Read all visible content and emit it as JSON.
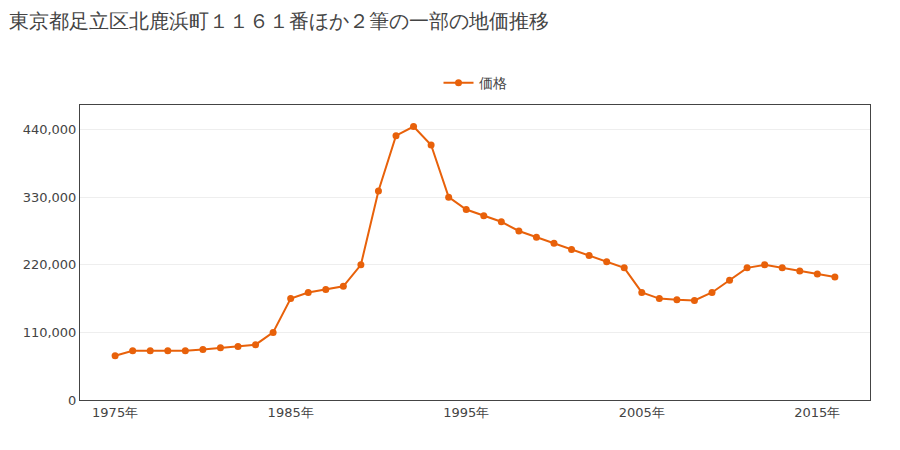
{
  "chart_data": {
    "type": "line",
    "title": "東京都足立区北鹿浜町１１６１番ほか２筆の一部の地価推移",
    "x": [
      1975,
      1976,
      1977,
      1978,
      1979,
      1980,
      1981,
      1982,
      1983,
      1984,
      1985,
      1986,
      1987,
      1988,
      1989,
      1990,
      1991,
      1992,
      1993,
      1994,
      1995,
      1996,
      1997,
      1998,
      1999,
      2000,
      2001,
      2002,
      2003,
      2004,
      2005,
      2006,
      2007,
      2008,
      2009,
      2010,
      2011,
      2012,
      2013,
      2014,
      2015,
      2016
    ],
    "series": [
      {
        "name": "価格",
        "color": "#e8610a",
        "marker": "circle",
        "values": [
          72000,
          80000,
          80000,
          80000,
          80000,
          82000,
          85000,
          87000,
          90000,
          110000,
          165000,
          175000,
          180000,
          185000,
          220000,
          340000,
          430000,
          445000,
          415000,
          330000,
          310000,
          300000,
          290000,
          275000,
          265000,
          255000,
          245000,
          235000,
          225000,
          215000,
          175000,
          165000,
          163000,
          162000,
          175000,
          195000,
          215000,
          220000,
          215000,
          210000,
          205000,
          200000
        ]
      }
    ],
    "xlim": [
      1973,
      2018
    ],
    "xticks": [
      {
        "value": 1975,
        "label": "1975年"
      },
      {
        "value": 1985,
        "label": "1985年"
      },
      {
        "value": 1995,
        "label": "1995年"
      },
      {
        "value": 2005,
        "label": "2005年"
      },
      {
        "value": 2015,
        "label": "2015年"
      }
    ],
    "ylim": [
      0,
      480000
    ],
    "yticks": [
      0,
      {
        "value": 110000,
        "label": "110,000"
      },
      {
        "value": 220000,
        "label": "220,000"
      },
      {
        "value": 330000,
        "label": "330,000"
      },
      {
        "value": 440000,
        "label": "440,000"
      }
    ],
    "grid": true,
    "legend": "upper center"
  }
}
